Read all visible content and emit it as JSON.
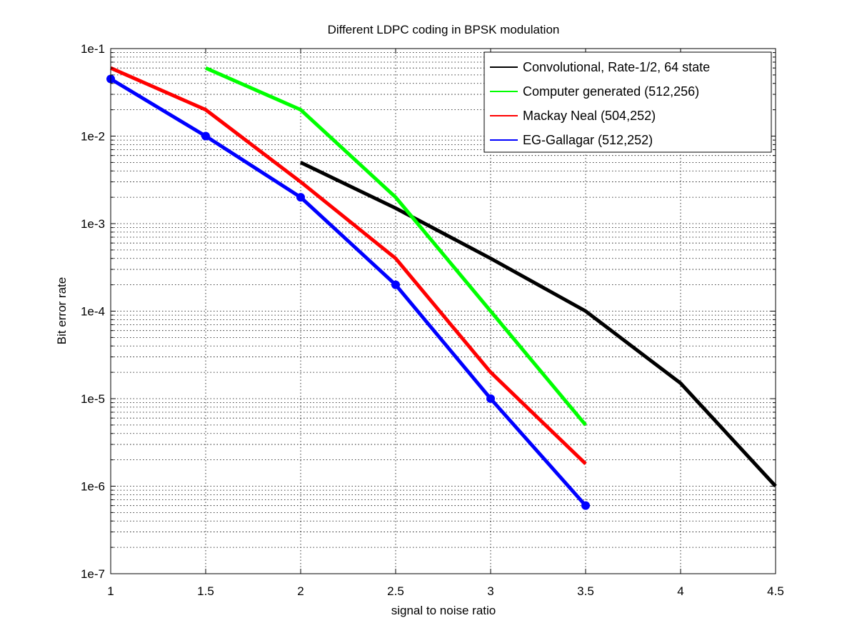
{
  "chart_data": {
    "type": "line",
    "title": "Different LDPC coding in BPSK modulation",
    "xlabel": "signal to noise ratio",
    "ylabel": "Bit error rate",
    "xlim": [
      1,
      4.5
    ],
    "ylim": [
      1e-07,
      0.1
    ],
    "yscale": "log",
    "x_ticks": [
      1,
      1.5,
      2,
      2.5,
      3,
      3.5,
      4,
      4.5
    ],
    "x_tick_labels": [
      "1",
      "1.5",
      "2",
      "2.5",
      "3",
      "3.5",
      "4",
      "4.5"
    ],
    "y_ticks": [
      1e-07,
      1e-06,
      1e-05,
      0.0001,
      0.001,
      0.01,
      0.1
    ],
    "y_tick_labels": [
      "1e-7",
      "1e-6",
      "1e-5",
      "1e-4",
      "1e-3",
      "1e-2",
      "1e-1"
    ],
    "grid": true,
    "legend_position": "top-right",
    "series": [
      {
        "name": "Convolutional, Rate-1/2, 64 state",
        "color": "#000000",
        "markers": false,
        "x": [
          2,
          2.5,
          3,
          3.5,
          4,
          4.5
        ],
        "y": [
          0.005,
          0.0015,
          0.0004,
          0.0001,
          1.5e-05,
          1e-06
        ]
      },
      {
        "name": "Computer generated (512,256)",
        "color": "#00ff00",
        "markers": false,
        "x": [
          1.5,
          2,
          2.5,
          3,
          3.5
        ],
        "y": [
          0.06,
          0.02,
          0.002,
          0.0001,
          5e-06
        ]
      },
      {
        "name": "Mackay Neal (504,252)",
        "color": "#ff0000",
        "markers": false,
        "x": [
          1,
          1.5,
          2,
          2.5,
          3,
          3.5
        ],
        "y": [
          0.06,
          0.02,
          0.003,
          0.0004,
          2e-05,
          1.8e-06
        ]
      },
      {
        "name": "EG-Gallagar (512,252)",
        "color": "#0000ff",
        "markers": true,
        "x": [
          1,
          1.5,
          2,
          2.5,
          3,
          3.5
        ],
        "y": [
          0.045,
          0.01,
          0.002,
          0.0002,
          1e-05,
          6e-07
        ]
      }
    ]
  }
}
